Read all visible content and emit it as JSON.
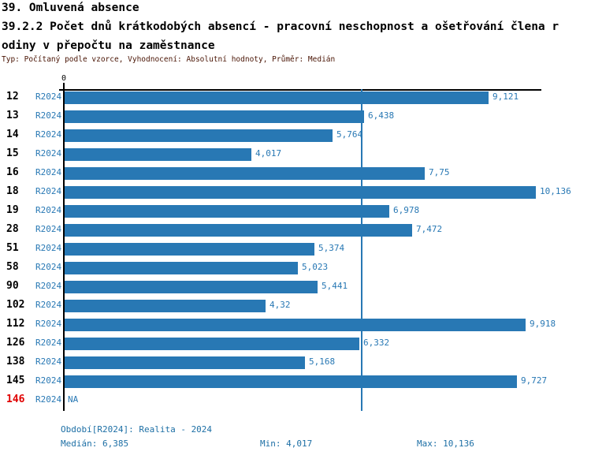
{
  "header": {
    "title": "39. Omluvená absence",
    "subtitle_line1": "39.2.2 Počet dnů krátkodobých absencí - pracovní neschopnost a ošetřování člena r",
    "subtitle_line2": "odiny v přepočtu na zaměstnance",
    "meta": "Typ: Počítaný podle vzorce, Vyhodnocení: Absolutní hodnoty, Průměr: Medián"
  },
  "chart_data": {
    "type": "bar",
    "orientation": "horizontal",
    "title": "39.2.2 Počet dnů krátkodobých absencí - pracovní neschopnost a ošetřování člena rodiny v přepočtu na zaměstnance",
    "xlabel": "",
    "ylabel": "",
    "axis": {
      "zero_label": "0",
      "xmin": 0,
      "xmax": 10.2
    },
    "grid": false,
    "legend_position": "none",
    "series_period": "R2024",
    "median_value": 6.385,
    "categories": [
      "12",
      "13",
      "14",
      "15",
      "16",
      "18",
      "19",
      "28",
      "51",
      "58",
      "90",
      "102",
      "112",
      "126",
      "138",
      "145",
      "146"
    ],
    "rows": [
      {
        "id": "12",
        "period": "R2024",
        "value": 9.121,
        "value_label": "9,121",
        "highlight": false
      },
      {
        "id": "13",
        "period": "R2024",
        "value": 6.438,
        "value_label": "6,438",
        "highlight": false
      },
      {
        "id": "14",
        "period": "R2024",
        "value": 5.764,
        "value_label": "5,764",
        "highlight": false
      },
      {
        "id": "15",
        "period": "R2024",
        "value": 4.017,
        "value_label": "4,017",
        "highlight": false
      },
      {
        "id": "16",
        "period": "R2024",
        "value": 7.75,
        "value_label": "7,75",
        "highlight": false
      },
      {
        "id": "18",
        "period": "R2024",
        "value": 10.136,
        "value_label": "10,136",
        "highlight": false
      },
      {
        "id": "19",
        "period": "R2024",
        "value": 6.978,
        "value_label": "6,978",
        "highlight": false
      },
      {
        "id": "28",
        "period": "R2024",
        "value": 7.472,
        "value_label": "7,472",
        "highlight": false
      },
      {
        "id": "51",
        "period": "R2024",
        "value": 5.374,
        "value_label": "5,374",
        "highlight": false
      },
      {
        "id": "58",
        "period": "R2024",
        "value": 5.023,
        "value_label": "5,023",
        "highlight": false
      },
      {
        "id": "90",
        "period": "R2024",
        "value": 5.441,
        "value_label": "5,441",
        "highlight": false
      },
      {
        "id": "102",
        "period": "R2024",
        "value": 4.32,
        "value_label": "4,32",
        "highlight": false
      },
      {
        "id": "112",
        "period": "R2024",
        "value": 9.918,
        "value_label": "9,918",
        "highlight": false
      },
      {
        "id": "126",
        "period": "R2024",
        "value": 6.332,
        "value_label": "6,332",
        "highlight": false
      },
      {
        "id": "138",
        "period": "R2024",
        "value": 5.168,
        "value_label": "5,168",
        "highlight": false
      },
      {
        "id": "145",
        "period": "R2024",
        "value": 9.727,
        "value_label": "9,727",
        "highlight": false
      },
      {
        "id": "146",
        "period": "R2024",
        "value": null,
        "value_label": "NA",
        "highlight": true
      }
    ],
    "colors": {
      "bar": "#2878b4",
      "median_line": "#2878b4",
      "value_text": "#2878b4",
      "period_text": "#2878b4",
      "highlight_text": "#e00000",
      "axis": "#000000"
    }
  },
  "footer": {
    "period_info": "Období[R2024]: Realita - 2024",
    "median": "Medián: 6,385",
    "min": "Min: 4,017",
    "max": "Max: 10,136"
  }
}
